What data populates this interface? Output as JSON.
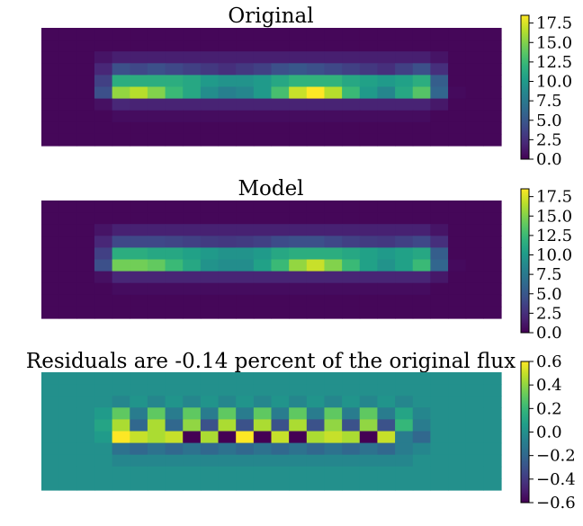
{
  "chart_data": [
    {
      "type": "heatmap",
      "title": "Original",
      "grid": false,
      "colormap": "viridis",
      "vmin": 0,
      "vmax": 18.5,
      "colorbar_ticks": [
        "0.0",
        "2.5",
        "5.0",
        "7.5",
        "10.0",
        "12.5",
        "15.0",
        "17.5"
      ],
      "colorbar_values": [
        0,
        2.5,
        5,
        7.5,
        10,
        12.5,
        15,
        17.5
      ],
      "z": [
        [
          0.3,
          0.3,
          0.3,
          0.3,
          0.3,
          0.3,
          0.3,
          0.3,
          0.3,
          0.3,
          0.3,
          0.3,
          0.3,
          0.3,
          0.3,
          0.3,
          0.3,
          0.3,
          0.3,
          0.3,
          0.3,
          0.3,
          0.3,
          0.3,
          0.3,
          0.3
        ],
        [
          0.3,
          0.3,
          0.3,
          0.3,
          0.3,
          0.3,
          0.3,
          0.3,
          0.3,
          0.3,
          0.3,
          0.3,
          0.3,
          0.3,
          0.3,
          0.3,
          0.3,
          0.3,
          0.3,
          0.3,
          0.3,
          0.3,
          0.3,
          0.3,
          0.3,
          0.3
        ],
        [
          0.3,
          0.3,
          0.3,
          1.0,
          1.6,
          1.6,
          1.6,
          1.6,
          1.6,
          1.6,
          1.6,
          1.6,
          1.6,
          1.6,
          1.6,
          1.6,
          1.6,
          1.6,
          1.6,
          1.6,
          1.6,
          1.6,
          1.0,
          0.3,
          0.3,
          0.3
        ],
        [
          0.3,
          0.3,
          0.3,
          2.0,
          4.5,
          4.0,
          4.5,
          4.0,
          3.5,
          3.0,
          2.5,
          3.0,
          3.5,
          4.5,
          5.0,
          4.5,
          4.0,
          3.5,
          3.0,
          2.5,
          3.5,
          4.5,
          2.5,
          0.3,
          0.3,
          0.3
        ],
        [
          0.3,
          0.3,
          0.3,
          3.5,
          11.5,
          11.5,
          11.5,
          11.5,
          11.0,
          10.0,
          9.5,
          9.5,
          10.0,
          11.0,
          12.0,
          12.0,
          12.0,
          11.0,
          10.5,
          10.0,
          10.5,
          11.5,
          5.5,
          0.3,
          0.3,
          0.3
        ],
        [
          0.3,
          0.3,
          0.3,
          4.5,
          15.5,
          16.5,
          15.0,
          12.5,
          11.0,
          9.0,
          8.0,
          8.5,
          10.0,
          13.0,
          17.0,
          18.5,
          16.5,
          12.5,
          10.0,
          8.5,
          11.0,
          13.5,
          6.0,
          0.5,
          0.3,
          0.3
        ],
        [
          0.3,
          0.3,
          0.3,
          0.8,
          2.0,
          1.8,
          1.8,
          1.8,
          1.8,
          1.8,
          1.8,
          1.8,
          1.8,
          1.8,
          1.8,
          1.8,
          1.8,
          1.8,
          1.8,
          1.8,
          1.8,
          1.8,
          1.2,
          0.3,
          0.3,
          0.3
        ],
        [
          0.3,
          0.3,
          0.3,
          0.3,
          0.6,
          0.6,
          0.6,
          0.6,
          0.6,
          0.6,
          0.6,
          0.6,
          0.6,
          0.6,
          0.6,
          0.6,
          0.6,
          0.6,
          0.6,
          0.6,
          0.6,
          0.6,
          0.3,
          0.3,
          0.3,
          0.3
        ],
        [
          0.3,
          0.3,
          0.3,
          0.3,
          0.3,
          0.3,
          0.3,
          0.3,
          0.3,
          0.3,
          0.3,
          0.3,
          0.3,
          0.3,
          0.3,
          0.3,
          0.3,
          0.3,
          0.3,
          0.3,
          0.3,
          0.3,
          0.3,
          0.3,
          0.3,
          0.3
        ],
        [
          0.3,
          0.3,
          0.3,
          0.3,
          0.3,
          0.3,
          0.3,
          0.3,
          0.3,
          0.3,
          0.3,
          0.3,
          0.3,
          0.3,
          0.3,
          0.3,
          0.3,
          0.3,
          0.3,
          0.3,
          0.3,
          0.3,
          0.3,
          0.3,
          0.3,
          0.3
        ]
      ]
    },
    {
      "type": "heatmap",
      "title": "Model",
      "grid": false,
      "colormap": "viridis",
      "vmin": 0,
      "vmax": 18.5,
      "colorbar_ticks": [
        "0.0",
        "2.5",
        "5.0",
        "7.5",
        "10.0",
        "12.5",
        "15.0",
        "17.5"
      ],
      "colorbar_values": [
        0,
        2.5,
        5,
        7.5,
        10,
        12.5,
        15,
        17.5
      ],
      "z": [
        [
          0.3,
          0.3,
          0.3,
          0.3,
          0.3,
          0.3,
          0.3,
          0.3,
          0.3,
          0.3,
          0.3,
          0.3,
          0.3,
          0.3,
          0.3,
          0.3,
          0.3,
          0.3,
          0.3,
          0.3,
          0.3,
          0.3,
          0.3,
          0.3,
          0.3,
          0.3
        ],
        [
          0.3,
          0.3,
          0.3,
          0.3,
          0.3,
          0.3,
          0.3,
          0.3,
          0.3,
          0.3,
          0.3,
          0.3,
          0.3,
          0.3,
          0.3,
          0.3,
          0.3,
          0.3,
          0.3,
          0.3,
          0.3,
          0.3,
          0.3,
          0.3,
          0.3,
          0.3
        ],
        [
          0.3,
          0.3,
          0.3,
          1.0,
          1.7,
          1.7,
          1.7,
          1.7,
          1.7,
          1.7,
          1.7,
          1.7,
          1.7,
          1.7,
          1.7,
          1.7,
          1.7,
          1.7,
          1.7,
          1.7,
          1.7,
          1.7,
          1.0,
          0.3,
          0.3,
          0.3
        ],
        [
          0.3,
          0.3,
          0.3,
          2.0,
          4.0,
          4.0,
          4.0,
          3.8,
          3.5,
          3.2,
          3.0,
          3.2,
          3.5,
          4.2,
          4.5,
          4.5,
          4.0,
          3.5,
          3.2,
          3.0,
          3.5,
          4.0,
          2.5,
          0.3,
          0.3,
          0.3
        ],
        [
          0.3,
          0.3,
          0.3,
          3.5,
          11.5,
          11.5,
          11.0,
          11.0,
          10.5,
          10.0,
          9.5,
          9.5,
          10.0,
          11.0,
          11.5,
          11.5,
          11.5,
          11.0,
          10.5,
          10.0,
          10.5,
          11.0,
          5.5,
          0.3,
          0.3,
          0.3
        ],
        [
          0.3,
          0.3,
          0.3,
          4.5,
          14.5,
          14.5,
          14.0,
          12.5,
          11.0,
          9.5,
          9.0,
          9.0,
          10.5,
          12.5,
          15.5,
          17.0,
          15.0,
          12.5,
          10.5,
          9.5,
          10.5,
          12.5,
          6.0,
          0.5,
          0.3,
          0.3
        ],
        [
          0.3,
          0.3,
          0.3,
          0.8,
          2.0,
          1.9,
          1.9,
          1.9,
          1.9,
          1.9,
          1.9,
          1.9,
          1.9,
          1.9,
          1.9,
          1.9,
          1.9,
          1.9,
          1.9,
          1.9,
          1.9,
          1.9,
          1.2,
          0.3,
          0.3,
          0.3
        ],
        [
          0.3,
          0.3,
          0.3,
          0.3,
          0.6,
          0.6,
          0.6,
          0.6,
          0.6,
          0.6,
          0.6,
          0.6,
          0.6,
          0.6,
          0.6,
          0.6,
          0.6,
          0.6,
          0.6,
          0.6,
          0.6,
          0.6,
          0.3,
          0.3,
          0.3,
          0.3
        ],
        [
          0.3,
          0.3,
          0.3,
          0.3,
          0.3,
          0.3,
          0.3,
          0.3,
          0.3,
          0.3,
          0.3,
          0.3,
          0.3,
          0.3,
          0.3,
          0.3,
          0.3,
          0.3,
          0.3,
          0.3,
          0.3,
          0.3,
          0.3,
          0.3,
          0.3,
          0.3
        ],
        [
          0.3,
          0.3,
          0.3,
          0.3,
          0.3,
          0.3,
          0.3,
          0.3,
          0.3,
          0.3,
          0.3,
          0.3,
          0.3,
          0.3,
          0.3,
          0.3,
          0.3,
          0.3,
          0.3,
          0.3,
          0.3,
          0.3,
          0.3,
          0.3,
          0.3,
          0.3
        ]
      ]
    },
    {
      "type": "heatmap",
      "title": "Residuals are -0.14 percent of the original flux",
      "grid": false,
      "colormap": "viridis",
      "vmin": -0.6,
      "vmax": 0.6,
      "colorbar_ticks": [
        "−0.6",
        "−0.4",
        "−0.2",
        "0.0",
        "0.2",
        "0.4",
        "0.6"
      ],
      "colorbar_values": [
        -0.6,
        -0.4,
        -0.2,
        0.0,
        0.2,
        0.4,
        0.6
      ],
      "z": [
        [
          0,
          0,
          0,
          0,
          0,
          0,
          0,
          0,
          0,
          0,
          0,
          0,
          0,
          0,
          0,
          0,
          0,
          0,
          0,
          0,
          0,
          0,
          0,
          0,
          0,
          0
        ],
        [
          0,
          0,
          0,
          0,
          0,
          0,
          0,
          0,
          0,
          0,
          0,
          0,
          0,
          0,
          0,
          0,
          0,
          0,
          0,
          0,
          0,
          0,
          0,
          0,
          0,
          0
        ],
        [
          0,
          0,
          0,
          0,
          -0.05,
          0.02,
          -0.05,
          0.02,
          -0.05,
          0.02,
          -0.05,
          0.02,
          -0.05,
          0.02,
          -0.05,
          0.02,
          -0.05,
          0.02,
          -0.05,
          0.02,
          -0.05,
          0,
          0,
          0,
          0,
          0
        ],
        [
          0,
          0,
          0,
          0.05,
          0.3,
          -0.1,
          0.3,
          -0.1,
          0.3,
          -0.1,
          0.3,
          -0.1,
          0.3,
          -0.1,
          0.3,
          -0.1,
          0.3,
          -0.1,
          0.3,
          -0.1,
          0.1,
          -0.05,
          0,
          0,
          0,
          0
        ],
        [
          0,
          0,
          0,
          0.1,
          0.45,
          -0.2,
          0.45,
          -0.2,
          0.4,
          -0.3,
          0.45,
          -0.3,
          0.45,
          -0.3,
          0.45,
          -0.3,
          0.4,
          -0.3,
          0.4,
          -0.3,
          0.2,
          -0.1,
          0,
          0,
          0,
          0
        ],
        [
          0,
          0,
          0,
          0.05,
          0.6,
          0.5,
          0.45,
          0.5,
          -0.6,
          0.45,
          -0.6,
          0.6,
          -0.6,
          0.5,
          -0.6,
          0.45,
          0.5,
          0.45,
          -0.6,
          0.5,
          -0.1,
          -0.2,
          0,
          0,
          0,
          0
        ],
        [
          0,
          0,
          0,
          0,
          -0.15,
          -0.2,
          -0.15,
          -0.2,
          -0.15,
          -0.2,
          -0.15,
          -0.2,
          -0.15,
          -0.2,
          -0.15,
          -0.2,
          -0.15,
          -0.2,
          -0.15,
          -0.2,
          -0.1,
          -0.05,
          0,
          0,
          0,
          0
        ],
        [
          0,
          0,
          0,
          0,
          -0.05,
          -0.05,
          -0.05,
          -0.05,
          -0.05,
          -0.05,
          -0.05,
          -0.05,
          -0.05,
          -0.05,
          -0.05,
          -0.05,
          -0.05,
          -0.05,
          -0.05,
          -0.05,
          -0.05,
          0,
          0,
          0,
          0,
          0
        ],
        [
          0,
          0,
          0,
          0,
          0,
          0,
          0,
          0,
          0,
          0,
          0,
          0,
          0,
          0,
          0,
          0,
          0,
          0,
          0,
          0,
          0,
          0,
          0,
          0,
          0,
          0
        ],
        [
          0,
          0,
          0,
          0,
          0,
          0,
          0,
          0,
          0,
          0,
          0,
          0,
          0,
          0,
          0,
          0,
          0,
          0,
          0,
          0,
          0,
          0,
          0,
          0,
          0,
          0
        ]
      ]
    }
  ]
}
